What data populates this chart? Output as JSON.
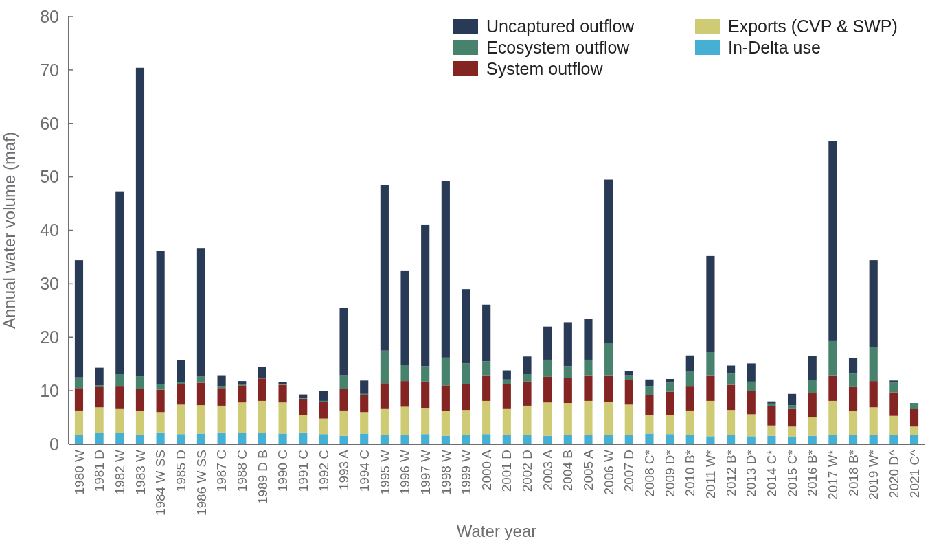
{
  "chart_data": {
    "type": "bar",
    "stacked": true,
    "xlabel": "Water year",
    "ylabel": "Annual water volume (maf)",
    "categories": [
      "1980 W",
      "1981 D",
      "1982 W",
      "1983 W",
      "1984 W SS",
      "1985 D",
      "1986 W SS",
      "1987 C",
      "1988 C",
      "1989 D B",
      "1990 C",
      "1991 C",
      "1992 C",
      "1993 A",
      "1994 C",
      "1995 W",
      "1996 W",
      "1997 W",
      "1998 W",
      "1999 W",
      "2000 A",
      "2001 D",
      "2002 D",
      "2003 A",
      "2004 B",
      "2005 A",
      "2006 W",
      "2007 D",
      "2008 C*",
      "2009 D*",
      "2010 B*",
      "2011 W*",
      "2012 B*",
      "2013 D*",
      "2014 C*",
      "2015 C*",
      "2016 B*",
      "2017 W*",
      "2018 B*",
      "2019 W*",
      "2020 D^",
      "2021 C^"
    ],
    "ylim": [
      0,
      80
    ],
    "yticks": [
      0,
      10,
      20,
      30,
      40,
      50,
      60,
      70,
      80
    ],
    "grid": false,
    "legend": "top right",
    "series": [
      {
        "name": "In-Delta use",
        "color": "#45b0d3",
        "values": [
          1.8,
          2.1,
          2.1,
          1.8,
          2.2,
          1.9,
          2.0,
          2.2,
          2.1,
          2.1,
          2.0,
          2.2,
          1.9,
          1.6,
          2.0,
          1.7,
          1.8,
          1.9,
          1.6,
          1.7,
          1.9,
          1.8,
          1.8,
          1.6,
          1.7,
          1.7,
          1.8,
          1.8,
          2.0,
          1.9,
          1.7,
          1.5,
          1.7,
          1.5,
          1.6,
          1.4,
          1.6,
          1.8,
          1.8,
          1.8,
          1.8,
          1.8
        ]
      },
      {
        "name": "Exports (CVP & SWP)",
        "color": "#cfcb74",
        "values": [
          4.5,
          4.8,
          4.6,
          4.4,
          3.8,
          5.5,
          5.3,
          5.0,
          5.7,
          6.0,
          5.8,
          3.3,
          2.9,
          4.7,
          4.0,
          5.0,
          5.2,
          4.9,
          4.6,
          4.7,
          6.2,
          4.9,
          5.4,
          6.2,
          6.0,
          6.4,
          6.1,
          5.6,
          3.5,
          3.5,
          4.6,
          6.6,
          4.7,
          4.1,
          1.9,
          1.9,
          3.4,
          6.3,
          4.4,
          5.1,
          3.5,
          1.5
        ]
      },
      {
        "name": "System outflow",
        "color": "#852523",
        "values": [
          4.2,
          3.8,
          4.2,
          4.1,
          4.2,
          3.8,
          4.2,
          3.3,
          3.2,
          4.2,
          3.3,
          3.0,
          3.1,
          4.0,
          3.2,
          4.7,
          4.8,
          4.9,
          4.8,
          4.8,
          4.8,
          4.5,
          4.5,
          4.8,
          4.7,
          4.8,
          5.0,
          4.6,
          3.7,
          4.4,
          4.6,
          4.8,
          4.7,
          4.4,
          3.6,
          3.4,
          4.5,
          4.8,
          4.6,
          4.9,
          4.4,
          3.3
        ]
      },
      {
        "name": "Ecosystem outflow",
        "color": "#47826c",
        "values": [
          2.0,
          0.3,
          2.2,
          2.4,
          1.1,
          0.4,
          1.2,
          0.4,
          0.2,
          0.1,
          0.2,
          0.1,
          0.2,
          2.6,
          0.2,
          6.1,
          3.0,
          2.9,
          5.2,
          3.9,
          2.6,
          0.9,
          1.4,
          3.2,
          2.2,
          2.9,
          6.0,
          0.9,
          1.7,
          1.7,
          2.8,
          4.4,
          2.1,
          1.7,
          0.5,
          0.6,
          2.5,
          6.5,
          2.4,
          6.3,
          1.8,
          1.1
        ]
      },
      {
        "name": "Uncaptured outflow",
        "color": "#283a55",
        "values": [
          21.9,
          3.3,
          34.2,
          57.7,
          24.9,
          4.1,
          24.0,
          2.0,
          0.6,
          2.1,
          0.3,
          0.7,
          1.9,
          12.6,
          2.5,
          31.0,
          17.7,
          26.5,
          33.1,
          13.9,
          10.6,
          1.7,
          3.3,
          6.2,
          8.2,
          7.7,
          30.6,
          0.8,
          1.2,
          0.7,
          2.9,
          17.9,
          1.5,
          3.4,
          0.4,
          2.1,
          4.5,
          37.3,
          2.9,
          16.3,
          0.4,
          0
        ]
      }
    ]
  }
}
